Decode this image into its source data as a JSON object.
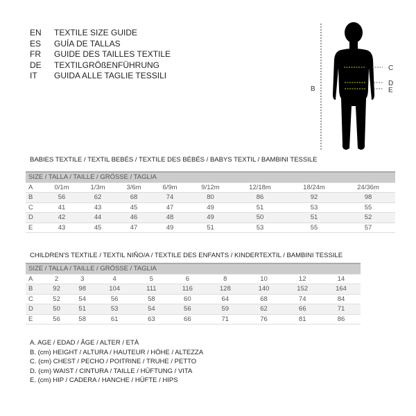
{
  "languages": [
    {
      "code": "EN",
      "label": "TEXTILE SIZE GUIDE"
    },
    {
      "code": "ES",
      "label": "GUÍA DE TALLAS"
    },
    {
      "code": "FR",
      "label": "GUIDE DES TAILLES TEXTILE"
    },
    {
      "code": "DE",
      "label": "TEXTILGRÖßENFÜHRUNG"
    },
    {
      "code": "IT",
      "label": "GUIDA ALLE TAGLIE TESSILI"
    }
  ],
  "figure": {
    "b": "B",
    "c": "C",
    "d": "D",
    "e": "E",
    "accent": "#c8d400"
  },
  "babies": {
    "title": "BABIES TEXTILE / TEXTIL BEBÉS / TEXTILE DES BÉBÉS / BABYS TEXTIL  / BAMBINI TESSILE",
    "header": "SIZE / TALLA / TAILLE / GRÖSSE / TAGLIA",
    "rows": [
      {
        "label": "A",
        "values": [
          "0/1m",
          "1/3m",
          "3/6m",
          "6/9m",
          "9/12m",
          "12/18m",
          "18/24m",
          "24/36m"
        ]
      },
      {
        "label": "B",
        "values": [
          "56",
          "62",
          "68",
          "74",
          "80",
          "86",
          "92",
          "98"
        ]
      },
      {
        "label": "C",
        "values": [
          "41",
          "43",
          "45",
          "47",
          "49",
          "51",
          "53",
          "55"
        ]
      },
      {
        "label": "D",
        "values": [
          "42",
          "44",
          "46",
          "48",
          "49",
          "50",
          "51",
          "52"
        ]
      },
      {
        "label": "E",
        "values": [
          "43",
          "45",
          "47",
          "49",
          "51",
          "53",
          "55",
          "57"
        ]
      }
    ]
  },
  "children": {
    "title": "CHILDREN'S TEXTILE / TEXTIL NIÑO/A / TEXTILE DES ENFANTS / KINDERTEXTIL / BAMBINI TESSILE",
    "header": "SIZE / TALLA / TAILLE / GRÖSSE / TAGLIA",
    "rows": [
      {
        "label": "A",
        "values": [
          "2",
          "3",
          "4",
          "5",
          "6",
          "8",
          "10",
          "12",
          "14"
        ]
      },
      {
        "label": "B",
        "values": [
          "92",
          "98",
          "104",
          "111",
          "116",
          "128",
          "140",
          "152",
          "164"
        ]
      },
      {
        "label": "C",
        "values": [
          "52",
          "54",
          "56",
          "58",
          "60",
          "64",
          "68",
          "74",
          "84"
        ]
      },
      {
        "label": "D",
        "values": [
          "50",
          "51",
          "53",
          "54",
          "56",
          "59",
          "62",
          "66",
          "71"
        ]
      },
      {
        "label": "E",
        "values": [
          "56",
          "58",
          "61",
          "63",
          "66",
          "71",
          "76",
          "81",
          "86"
        ]
      }
    ]
  },
  "legend": [
    "A. AGE / EDAD / ÂGE / ALTER / ETÀ",
    "B. (cm) HEIGHT / ALTURA / HAUTEUR / HÖHE / ALTEZZA",
    "C. (cm) CHEST / PECHO / POITRINE / TRUHE / PETTO",
    "D. (cm) WAIST / CINTURA / TAILLE / HÜFTUNG / VITA",
    "E. (cm) HIP / CADERA / HANCHE / HÜFTE / HIPS"
  ]
}
